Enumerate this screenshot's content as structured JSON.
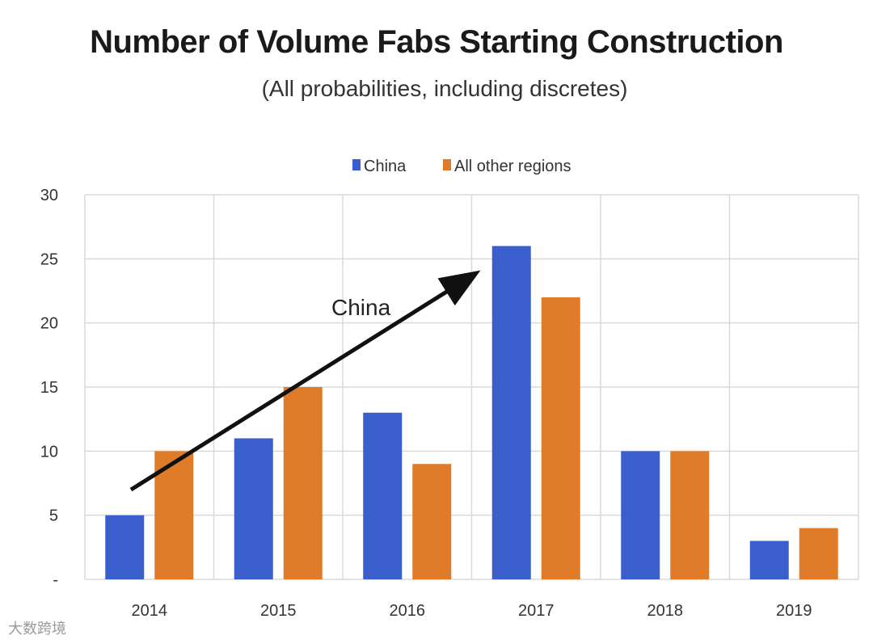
{
  "chart_data": {
    "type": "bar",
    "title": "Number of Volume Fabs Starting Construction",
    "subtitle": "(All probabilities, including discretes)",
    "categories": [
      "2014",
      "2015",
      "2016",
      "2017",
      "2018",
      "2019"
    ],
    "series": [
      {
        "name": "China",
        "values": [
          5,
          11,
          13,
          26,
          10,
          3
        ],
        "color": "#3a5fcd"
      },
      {
        "name": "All other regions",
        "values": [
          10,
          15,
          9,
          22,
          10,
          4
        ],
        "color": "#e07b2a"
      }
    ],
    "ylim": [
      0,
      30
    ],
    "yticks": [
      {
        "value": 0,
        "label": "-"
      },
      {
        "value": 5,
        "label": "5"
      },
      {
        "value": 10,
        "label": "10"
      },
      {
        "value": 15,
        "label": "15"
      },
      {
        "value": 20,
        "label": "20"
      },
      {
        "value": 25,
        "label": "25"
      },
      {
        "value": 30,
        "label": "30"
      }
    ],
    "grid": true,
    "legend_position": "top-center",
    "annotation": {
      "text": "China",
      "arrow": "trend arrow from 2014 to 2017"
    }
  },
  "watermark": "大数跨境"
}
